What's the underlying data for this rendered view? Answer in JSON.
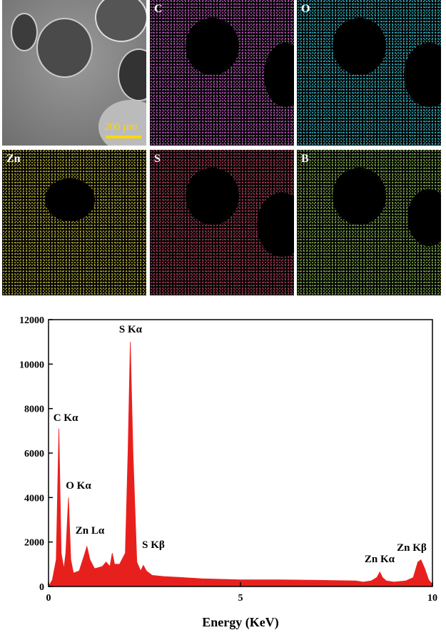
{
  "figure": {
    "scale_bar": "200 µm",
    "map_labels": [
      "C",
      "O",
      "Zn",
      "S",
      "B"
    ]
  },
  "chart_data": {
    "type": "area",
    "xlabel": "Energy (KeV)",
    "color": "#e8201d",
    "x": [
      0,
      0.1,
      0.2,
      0.27,
      0.33,
      0.4,
      0.45,
      0.52,
      0.58,
      0.65,
      0.8,
      0.93,
      1.0,
      1.08,
      1.2,
      1.4,
      1.5,
      1.6,
      1.66,
      1.72,
      1.85,
      2.0,
      2.07,
      2.13,
      2.2,
      2.3,
      2.4,
      2.47,
      2.55,
      2.7,
      3.0,
      3.5,
      4.0,
      5.0,
      6.0,
      7.0,
      8.0,
      8.2,
      8.4,
      8.55,
      8.63,
      8.7,
      8.8,
      9.0,
      9.3,
      9.5,
      9.62,
      9.7,
      9.8,
      9.9,
      10.0
    ],
    "values": [
      0,
      300,
      1200,
      7100,
      1500,
      800,
      1500,
      4000,
      1200,
      600,
      700,
      1400,
      1800,
      1200,
      800,
      900,
      1100,
      900,
      1500,
      1000,
      1000,
      1500,
      6000,
      11000,
      6000,
      1100,
      700,
      950,
      700,
      500,
      450,
      400,
      350,
      300,
      300,
      280,
      250,
      200,
      250,
      400,
      650,
      400,
      250,
      200,
      250,
      400,
      1100,
      1200,
      800,
      300,
      100
    ],
    "xlim": [
      0,
      10
    ],
    "ylim": [
      0,
      12000
    ],
    "xticks": [
      0,
      5,
      10
    ],
    "yticks": [
      0,
      2000,
      4000,
      6000,
      8000,
      10000,
      12000
    ],
    "annotations": [
      "C Kα",
      "O Kα",
      "Zn Lα",
      "S Kα",
      "S Kβ",
      "Zn Kα",
      "Zn Kβ"
    ]
  }
}
